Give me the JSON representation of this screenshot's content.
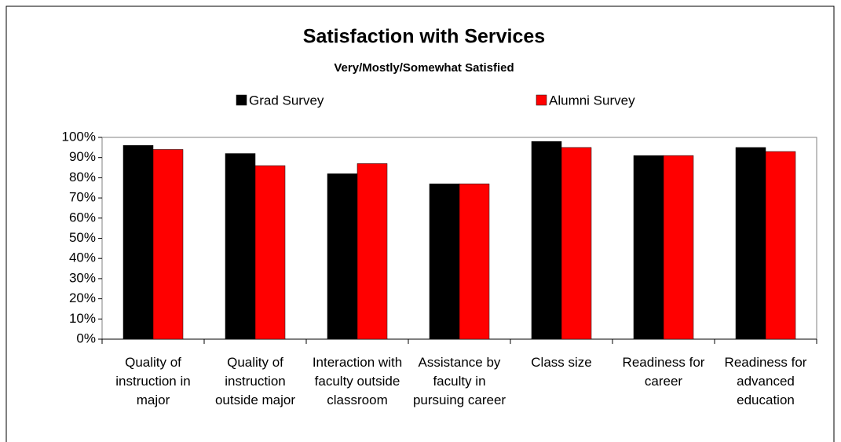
{
  "chart_data": {
    "type": "bar",
    "title": "Satisfaction with Services",
    "subtitle": "Very/Mostly/Somewhat Satisfied",
    "categories": [
      "Quality of instruction in major",
      "Quality of instruction outside major",
      "Interaction with faculty outside classroom",
      "Assistance by faculty in pursuing career",
      "Class size",
      "Readiness for career",
      "Readiness for advanced education"
    ],
    "series": [
      {
        "name": "Grad Survey",
        "color": "#000000",
        "values": [
          96,
          92,
          82,
          77,
          98,
          91,
          95
        ]
      },
      {
        "name": "Alumni Survey",
        "color": "#ff0000",
        "values": [
          94,
          86,
          87,
          77,
          95,
          91,
          93
        ]
      }
    ],
    "ylim": [
      0,
      100
    ],
    "yticks": [
      {
        "value": 0,
        "label": "0%"
      },
      {
        "value": 10,
        "label": "10%"
      },
      {
        "value": 20,
        "label": "20%"
      },
      {
        "value": 30,
        "label": "30%"
      },
      {
        "value": 40,
        "label": "40%"
      },
      {
        "value": 50,
        "label": "50%"
      },
      {
        "value": 60,
        "label": "60%"
      },
      {
        "value": 70,
        "label": "70%"
      },
      {
        "value": 80,
        "label": "80%"
      },
      {
        "value": 90,
        "label": "90%"
      },
      {
        "value": 100,
        "label": "100%"
      }
    ],
    "legend": "top"
  }
}
